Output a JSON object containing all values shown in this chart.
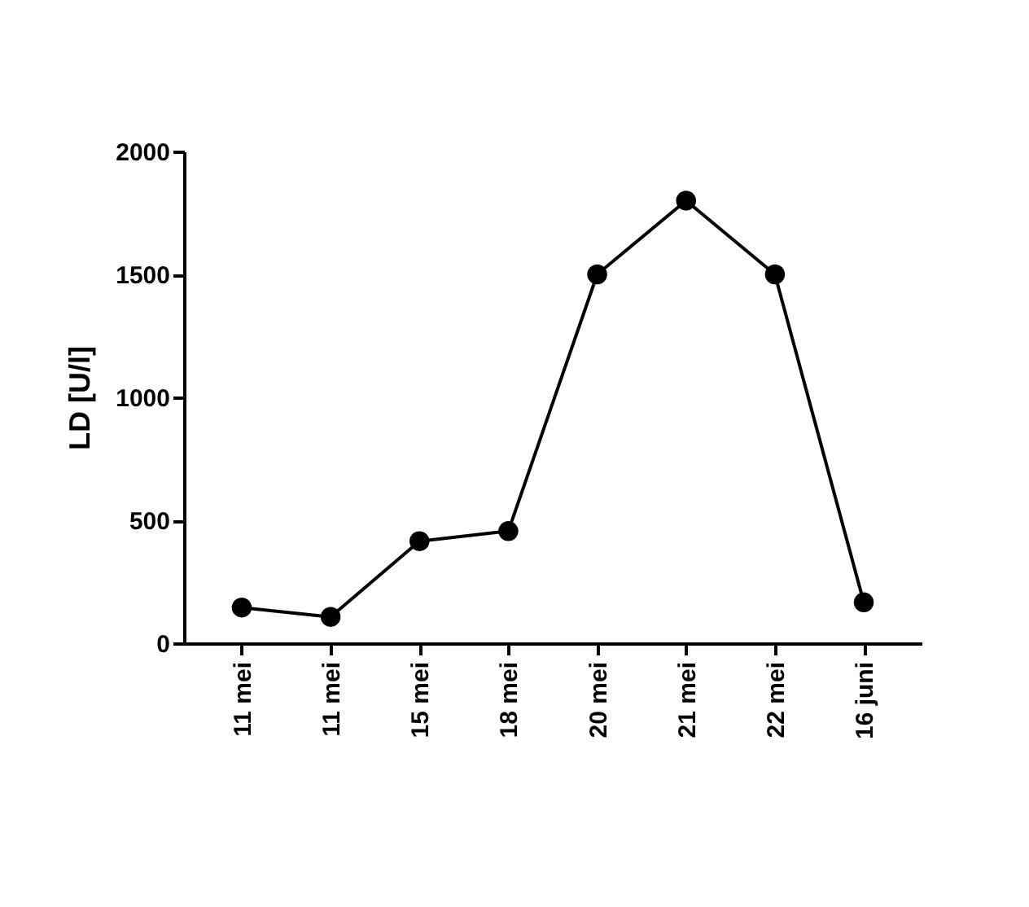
{
  "chart_data": {
    "type": "line",
    "ylabel": "LD [U/l]",
    "categories": [
      "11 mei",
      "11 mei",
      "15 mei",
      "18 mei",
      "20 mei",
      "21 mei",
      "22 mei",
      "16 juni"
    ],
    "series": [
      {
        "color": "#000000",
        "values": [
          145,
          107,
          415,
          456,
          1500,
          1800,
          1500,
          166
        ]
      }
    ],
    "ylim": [
      0,
      2000
    ],
    "yticks": [
      0,
      500,
      1000,
      1500,
      2000
    ],
    "grid": false,
    "marker": "circle",
    "line_style": "solid"
  }
}
